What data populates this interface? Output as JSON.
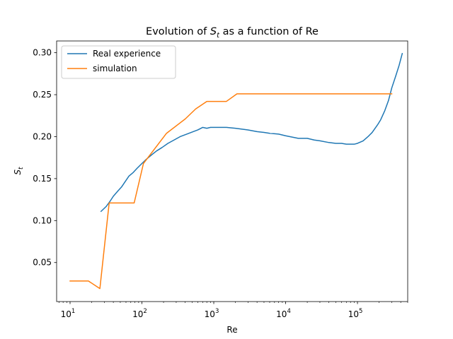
{
  "chart_data": {
    "type": "line",
    "title": "Evolution of S_t as a function of Re",
    "title_parts": {
      "before": "Evolution of ",
      "symbol": "S",
      "subscript": "t",
      "after": " as a function of Re"
    },
    "xlabel": "Re",
    "ylabel": "S_t",
    "ylabel_parts": {
      "symbol": "S",
      "subscript": "t"
    },
    "x_scale": "log",
    "xlim": [
      6.5,
      500000
    ],
    "ylim": [
      0.0035,
      0.314
    ],
    "x_ticks": [
      {
        "value": 10,
        "base": "10",
        "exp": "1"
      },
      {
        "value": 100,
        "base": "10",
        "exp": "2"
      },
      {
        "value": 1000,
        "base": "10",
        "exp": "3"
      },
      {
        "value": 10000,
        "base": "10",
        "exp": "4"
      },
      {
        "value": 100000,
        "base": "10",
        "exp": "5"
      }
    ],
    "y_ticks": [
      {
        "value": 0.05,
        "label": "0.05"
      },
      {
        "value": 0.1,
        "label": "0.10"
      },
      {
        "value": 0.15,
        "label": "0.15"
      },
      {
        "value": 0.2,
        "label": "0.20"
      },
      {
        "value": 0.25,
        "label": "0.25"
      },
      {
        "value": 0.3,
        "label": "0.30"
      }
    ],
    "grid": false,
    "legend_position": "top-left",
    "series": [
      {
        "name": "Real experience",
        "color": "#1f77b4",
        "points": [
          [
            27,
            0.111
          ],
          [
            32,
            0.117
          ],
          [
            36,
            0.123
          ],
          [
            40,
            0.129
          ],
          [
            46,
            0.135
          ],
          [
            52,
            0.14
          ],
          [
            58,
            0.146
          ],
          [
            66,
            0.153
          ],
          [
            75,
            0.157
          ],
          [
            85,
            0.162
          ],
          [
            100,
            0.168
          ],
          [
            115,
            0.173
          ],
          [
            135,
            0.178
          ],
          [
            160,
            0.183
          ],
          [
            190,
            0.187
          ],
          [
            230,
            0.192
          ],
          [
            280,
            0.196
          ],
          [
            340,
            0.2
          ],
          [
            420,
            0.203
          ],
          [
            520,
            0.206
          ],
          [
            600,
            0.208
          ],
          [
            700,
            0.211
          ],
          [
            800,
            0.21
          ],
          [
            900,
            0.211
          ],
          [
            1100,
            0.211
          ],
          [
            1500,
            0.211
          ],
          [
            2000,
            0.21
          ],
          [
            3000,
            0.208
          ],
          [
            4000,
            0.206
          ],
          [
            5000,
            0.205
          ],
          [
            6000,
            0.204
          ],
          [
            8000,
            0.203
          ],
          [
            10000,
            0.201
          ],
          [
            15000,
            0.198
          ],
          [
            20000,
            0.198
          ],
          [
            25000,
            0.196
          ],
          [
            30000,
            0.195
          ],
          [
            40000,
            0.193
          ],
          [
            50000,
            0.192
          ],
          [
            60000,
            0.192
          ],
          [
            70000,
            0.191
          ],
          [
            90000,
            0.191
          ],
          [
            100000,
            0.192
          ],
          [
            120000,
            0.195
          ],
          [
            140000,
            0.2
          ],
          [
            160000,
            0.205
          ],
          [
            190000,
            0.214
          ],
          [
            210000,
            0.22
          ],
          [
            240000,
            0.231
          ],
          [
            270000,
            0.243
          ],
          [
            300000,
            0.258
          ],
          [
            340000,
            0.272
          ],
          [
            380000,
            0.285
          ],
          [
            420000,
            0.299
          ]
        ]
      },
      {
        "name": "simulation",
        "color": "#ff7f0e",
        "points": [
          [
            10,
            0.028
          ],
          [
            18,
            0.028
          ],
          [
            26,
            0.019
          ],
          [
            35,
            0.121
          ],
          [
            78,
            0.121
          ],
          [
            105,
            0.168
          ],
          [
            220,
            0.204
          ],
          [
            400,
            0.221
          ],
          [
            560,
            0.233
          ],
          [
            800,
            0.242
          ],
          [
            1500,
            0.242
          ],
          [
            2100,
            0.251
          ],
          [
            300000,
            0.251
          ]
        ]
      }
    ]
  }
}
